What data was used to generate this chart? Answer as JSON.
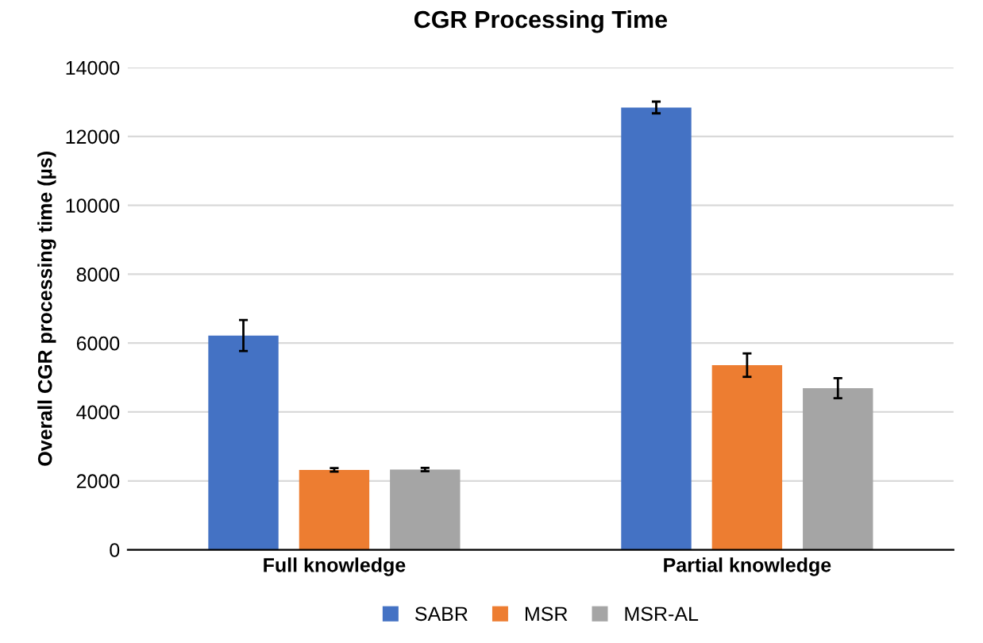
{
  "chart_data": {
    "type": "bar",
    "title": "CGR Processing Time",
    "ylabel": "Overall CGR processing time (µs)",
    "categories": [
      "Full knowledge",
      "Partial knowledge"
    ],
    "series": [
      {
        "name": "SABR",
        "color": "#4472c4",
        "values": [
          6220,
          12840
        ],
        "errors": [
          450,
          170
        ]
      },
      {
        "name": "MSR",
        "color": "#ed7d31",
        "values": [
          2320,
          5360
        ],
        "errors": [
          50,
          340
        ]
      },
      {
        "name": "MSR-AL",
        "color": "#a5a5a5",
        "values": [
          2330,
          4690
        ],
        "errors": [
          50,
          290
        ]
      }
    ],
    "ylim": [
      0,
      14000
    ],
    "yticks": [
      0,
      2000,
      4000,
      6000,
      8000,
      10000,
      12000,
      14000
    ],
    "grid": "y",
    "legend": "bottom"
  }
}
